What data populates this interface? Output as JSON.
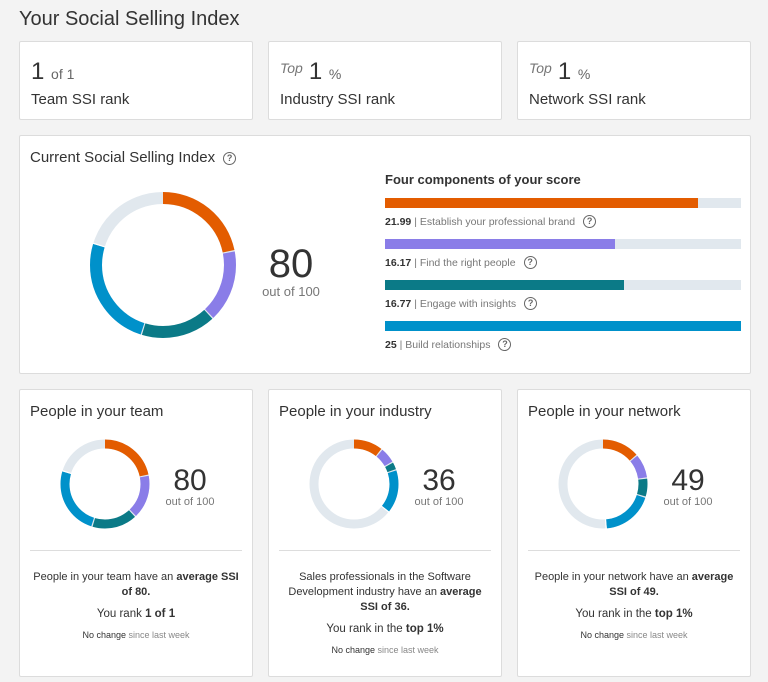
{
  "page_title": "Your Social Selling Index",
  "ranks": [
    {
      "prefix": "",
      "value": "1",
      "suffix": "of 1",
      "label": "Team SSI rank"
    },
    {
      "prefix": "Top",
      "value": "1",
      "suffix": "%",
      "label": "Industry SSI rank"
    },
    {
      "prefix": "Top",
      "value": "1",
      "suffix": "%",
      "label": "Network SSI rank"
    }
  ],
  "current": {
    "title": "Current Social Selling Index",
    "score": "80",
    "out_of": "out of 100",
    "components_title": "Four components of your score",
    "components": [
      {
        "value": "21.99",
        "label": "Establish your professional brand",
        "score": 21.99,
        "max": 25,
        "color": "#e35c00"
      },
      {
        "value": "16.17",
        "label": "Find the right people",
        "score": 16.17,
        "max": 25,
        "color": "#8a7de8"
      },
      {
        "value": "16.77",
        "label": "Engage with insights",
        "score": 16.77,
        "max": 25,
        "color": "#0b7a87"
      },
      {
        "value": "25",
        "label": "Build relationships",
        "score": 25,
        "max": 25,
        "color": "#0091ca"
      }
    ]
  },
  "groups": [
    {
      "title": "People in your team",
      "score": "80",
      "out_of": "out of 100",
      "segments": [
        21.99,
        16.17,
        16.77,
        25
      ],
      "desc_pre": "People in your team have an",
      "desc_bold": "average SSI of 80.",
      "rank_pre": "You rank",
      "rank_bold": "1 of 1",
      "change_bold": "No change",
      "change_rest": "since last week"
    },
    {
      "title": "People in your industry",
      "score": "36",
      "out_of": "out of 100",
      "segments": [
        11,
        6,
        3,
        16
      ],
      "desc_pre": "Sales professionals in the Software Development industry have an",
      "desc_bold": "average SSI of 36.",
      "rank_pre": "You rank in the",
      "rank_bold": "top 1%",
      "change_bold": "No change",
      "change_rest": "since last week"
    },
    {
      "title": "People in your network",
      "score": "49",
      "out_of": "out of 100",
      "segments": [
        14,
        9,
        7,
        19
      ],
      "desc_pre": "People in your network have an",
      "desc_bold": "average SSI of 49.",
      "rank_pre": "You rank in the",
      "rank_bold": "top 1%",
      "change_bold": "No change",
      "change_rest": "since last week"
    }
  ],
  "track_color": "#e1e8ee"
}
